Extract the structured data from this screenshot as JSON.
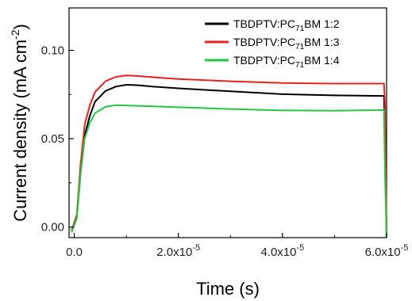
{
  "chart_data": {
    "type": "line",
    "xlabel": "Time (s)",
    "ylabel": "Current density (mA cm",
    "ylabel_sup": "-2",
    "ylabel_close": ")",
    "xlim": [
      -1e-06,
      6e-05
    ],
    "ylim": [
      -0.006,
      0.124
    ],
    "x_ticks": [
      {
        "value": 0,
        "mantissa": "0.0",
        "exponent": ""
      },
      {
        "value": 2e-05,
        "mantissa": "2.0x10",
        "exponent": "-5"
      },
      {
        "value": 4e-05,
        "mantissa": "4.0x10",
        "exponent": "-5"
      },
      {
        "value": 6e-05,
        "mantissa": "6.0x10",
        "exponent": "-5"
      }
    ],
    "y_ticks": [
      {
        "value": 0.0,
        "label": "0.00"
      },
      {
        "value": 0.05,
        "label": "0.05"
      },
      {
        "value": 0.1,
        "label": "0.10"
      }
    ],
    "legend_position": "top-right",
    "grid": false,
    "series": [
      {
        "name_main": "TBDPTV:PC",
        "name_sub": "71",
        "name_tail": "BM 1:2",
        "color": "#000000",
        "points": [
          [
            -5e-07,
            -0.002
          ],
          [
            5e-07,
            0.006
          ],
          [
            1.2e-06,
            0.03
          ],
          [
            2e-06,
            0.052
          ],
          [
            3e-06,
            0.063
          ],
          [
            4e-06,
            0.071
          ],
          [
            6e-06,
            0.077
          ],
          [
            8e-06,
            0.0795
          ],
          [
            1e-05,
            0.0805
          ],
          [
            1.2e-05,
            0.0803
          ],
          [
            1.5e-05,
            0.0795
          ],
          [
            2e-05,
            0.0785
          ],
          [
            3e-05,
            0.0768
          ],
          [
            4e-05,
            0.0752
          ],
          [
            5e-05,
            0.0745
          ],
          [
            5.95e-05,
            0.0742
          ],
          [
            5.97e-05,
            0.053
          ],
          [
            6e-05,
            -0.006
          ]
        ]
      },
      {
        "name_main": "TBDPTV:PC",
        "name_sub": "71",
        "name_tail": "BM 1:3",
        "color": "#e8201f",
        "points": [
          [
            -5e-07,
            -0.002
          ],
          [
            5e-07,
            0.007
          ],
          [
            1.2e-06,
            0.035
          ],
          [
            2e-06,
            0.058
          ],
          [
            3e-06,
            0.069
          ],
          [
            4e-06,
            0.0765
          ],
          [
            6e-06,
            0.0825
          ],
          [
            8e-06,
            0.085
          ],
          [
            1e-05,
            0.0858
          ],
          [
            1.2e-05,
            0.0855
          ],
          [
            1.5e-05,
            0.0848
          ],
          [
            2e-05,
            0.0838
          ],
          [
            3e-05,
            0.0825
          ],
          [
            4e-05,
            0.0815
          ],
          [
            5e-05,
            0.0812
          ],
          [
            5.95e-05,
            0.0812
          ],
          [
            5.97e-05,
            0.07
          ],
          [
            6e-05,
            -0.006
          ]
        ]
      },
      {
        "name_main": "TBDPTV:PC",
        "name_sub": "71",
        "name_tail": "BM 1:4",
        "color": "#22c742",
        "points": [
          [
            -5e-07,
            -0.003
          ],
          [
            5e-07,
            0.005
          ],
          [
            1.2e-06,
            0.03
          ],
          [
            2e-06,
            0.05
          ],
          [
            3e-06,
            0.059
          ],
          [
            4e-06,
            0.0645
          ],
          [
            6e-06,
            0.068
          ],
          [
            8e-06,
            0.069
          ],
          [
            1e-05,
            0.0688
          ],
          [
            1.5e-05,
            0.0683
          ],
          [
            2e-05,
            0.0678
          ],
          [
            3e-05,
            0.0668
          ],
          [
            4e-05,
            0.066
          ],
          [
            5e-05,
            0.0658
          ],
          [
            5.95e-05,
            0.0662
          ],
          [
            5.97e-05,
            0.03
          ],
          [
            6e-05,
            -0.006
          ]
        ]
      }
    ]
  }
}
